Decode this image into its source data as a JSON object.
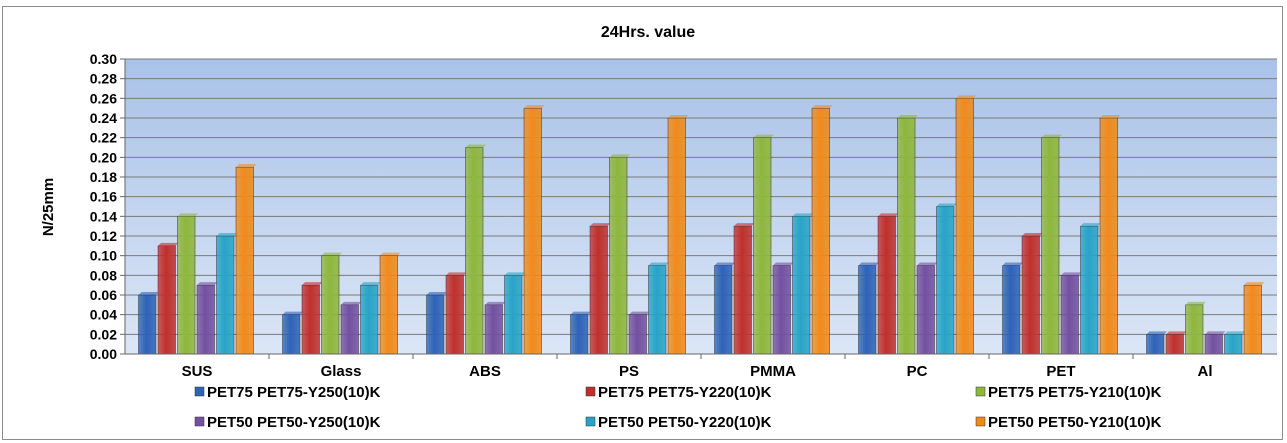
{
  "chart_data": {
    "type": "bar",
    "title": "24Hrs. value",
    "ylabel": "N/25mm",
    "xlabel": "",
    "ylim": [
      0,
      0.3
    ],
    "ytick_step": 0.02,
    "grid": true,
    "legend_position": "bottom",
    "categories": [
      "SUS",
      "Glass",
      "ABS",
      "PS",
      "PMMA",
      "PC",
      "PET",
      "Al"
    ],
    "series": [
      {
        "name": "PET75 PET75-Y250(10)K",
        "color": "#2e63b8",
        "values": [
          0.06,
          0.04,
          0.06,
          0.04,
          0.09,
          0.09,
          0.09,
          0.02
        ]
      },
      {
        "name": "PET75 PET75-Y220(10)K",
        "color": "#c0302b",
        "values": [
          0.11,
          0.07,
          0.08,
          0.13,
          0.13,
          0.14,
          0.12,
          0.02
        ]
      },
      {
        "name": "PET75 PET75-Y210(10)K",
        "color": "#8fb63d",
        "values": [
          0.14,
          0.1,
          0.21,
          0.2,
          0.22,
          0.24,
          0.22,
          0.05
        ]
      },
      {
        "name": "PET50 PET50-Y250(10)K",
        "color": "#7450a0",
        "values": [
          0.07,
          0.05,
          0.05,
          0.04,
          0.09,
          0.09,
          0.08,
          0.02
        ]
      },
      {
        "name": "PET50 PET50-Y220(10)K",
        "color": "#29a3c6",
        "values": [
          0.12,
          0.07,
          0.08,
          0.09,
          0.14,
          0.15,
          0.13,
          0.02
        ]
      },
      {
        "name": "PET50 PET50-Y210(10)K",
        "color": "#f08a1c",
        "values": [
          0.19,
          0.1,
          0.25,
          0.24,
          0.25,
          0.26,
          0.24,
          0.07
        ]
      }
    ],
    "colors": {
      "plot_bg_top": "#a9c2e8",
      "plot_bg_bottom": "#dbe6f6",
      "gridline": "#7a7a7a"
    }
  }
}
